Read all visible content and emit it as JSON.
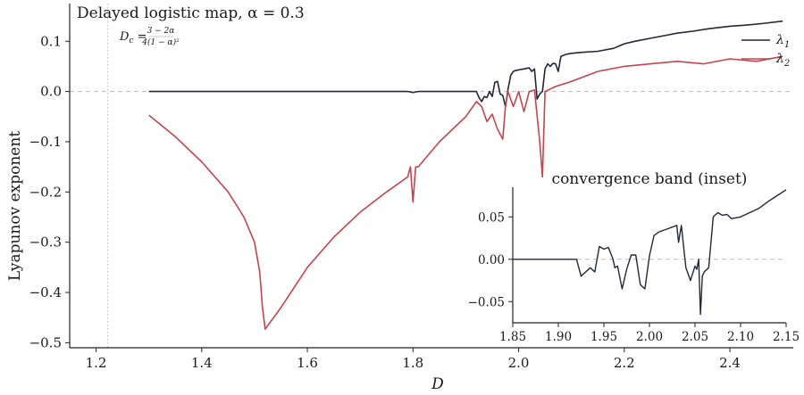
{
  "chart_data": [
    {
      "type": "line",
      "title": "Delayed logistic map, α = 0.3",
      "xlabel": "D",
      "ylabel": "Lyapunov exponent",
      "xlim": [
        1.15,
        2.52
      ],
      "ylim": [
        -0.51,
        0.175
      ],
      "xticks": [
        1.2,
        1.4,
        1.6,
        1.8,
        2.0,
        2.2,
        2.4
      ],
      "xtick_labels": [
        "1.2",
        "1.4",
        "1.6",
        "1.8",
        "2.0",
        "2.2",
        "2.4"
      ],
      "yticks": [
        0.1,
        0.0,
        -0.1,
        -0.2,
        -0.3,
        -0.4,
        -0.5
      ],
      "ytick_labels": [
        "0.1",
        "0.0",
        "−0.1",
        "−0.2",
        "−0.3",
        "−0.4",
        "−0.5"
      ],
      "grid": false,
      "legend": "top-right",
      "reference_lines": [
        {
          "orientation": "horizontal",
          "value": 0.0,
          "style": "dashed",
          "color": "#bbbbbb"
        },
        {
          "orientation": "vertical",
          "value": 1.2222,
          "style": "dotted",
          "color": "#bbbbbb"
        }
      ],
      "annotation": {
        "text": "D_c = (3 − 2α) / (4(1 − α)²)",
        "x": 1.225,
        "y": 0.14
      },
      "series": [
        {
          "name": "λ1",
          "color": "#232838",
          "x": [
            1.3,
            1.5,
            1.7,
            1.79,
            1.8,
            1.81,
            1.9,
            1.915,
            1.92,
            1.925,
            1.93,
            1.935,
            1.94,
            1.945,
            1.95,
            1.955,
            1.96,
            1.965,
            1.97,
            1.975,
            1.98,
            1.985,
            1.99,
            1.995,
            2.0,
            2.005,
            2.01,
            2.015,
            2.02,
            2.025,
            2.03,
            2.035,
            2.04,
            2.045,
            2.05,
            2.055,
            2.06,
            2.065,
            2.07,
            2.075,
            2.08,
            2.09,
            2.1,
            2.12,
            2.15,
            2.18,
            2.2,
            2.22,
            2.25,
            2.28,
            2.3,
            2.33,
            2.36,
            2.4,
            2.43,
            2.46,
            2.5
          ],
          "y": [
            0.0,
            0.0,
            0.0,
            0.0,
            -0.002,
            0.0,
            0.0,
            0.0,
            0.0,
            -0.012,
            -0.02,
            -0.01,
            -0.012,
            0.0,
            -0.01,
            0.018,
            0.02,
            -0.005,
            -0.008,
            -0.03,
            0.005,
            0.032,
            0.04,
            0.042,
            0.043,
            0.044,
            0.045,
            0.046,
            0.047,
            0.04,
            0.045,
            -0.015,
            -0.005,
            0.0,
            0.045,
            0.055,
            0.05,
            0.056,
            0.055,
            0.04,
            0.07,
            0.074,
            0.076,
            0.078,
            0.08,
            0.086,
            0.095,
            0.1,
            0.106,
            0.112,
            0.116,
            0.12,
            0.125,
            0.13,
            0.132,
            0.135,
            0.14
          ]
        },
        {
          "name": "λ2",
          "color": "#c8434e",
          "x": [
            1.3,
            1.35,
            1.4,
            1.45,
            1.48,
            1.5,
            1.51,
            1.515,
            1.52,
            1.55,
            1.6,
            1.65,
            1.7,
            1.75,
            1.79,
            1.795,
            1.8,
            1.805,
            1.81,
            1.85,
            1.9,
            1.92,
            1.93,
            1.94,
            1.95,
            1.96,
            1.97,
            1.975,
            1.98,
            1.99,
            2.0,
            2.01,
            2.02,
            2.03,
            2.04,
            2.045,
            2.05,
            2.06,
            2.07,
            2.1,
            2.15,
            2.2,
            2.25,
            2.3,
            2.35,
            2.4,
            2.45,
            2.5
          ],
          "y": [
            -0.047,
            -0.09,
            -0.14,
            -0.2,
            -0.25,
            -0.3,
            -0.36,
            -0.43,
            -0.473,
            -0.43,
            -0.35,
            -0.29,
            -0.24,
            -0.2,
            -0.17,
            -0.15,
            -0.22,
            -0.15,
            -0.15,
            -0.1,
            -0.05,
            -0.02,
            -0.03,
            -0.06,
            -0.045,
            -0.075,
            -0.095,
            -0.03,
            0.0,
            -0.03,
            0.0,
            -0.04,
            0.0,
            0.003,
            -0.1,
            -0.17,
            0.0,
            0.005,
            0.01,
            0.02,
            0.04,
            0.05,
            0.055,
            0.06,
            0.055,
            0.065,
            0.06,
            0.07
          ]
        }
      ]
    },
    {
      "type": "line",
      "title": "convergence band (inset)",
      "xlim": [
        1.85,
        2.15
      ],
      "ylim": [
        -0.075,
        0.085
      ],
      "xticks": [
        1.85,
        1.9,
        1.95,
        2.0,
        2.05,
        2.1,
        2.15
      ],
      "xtick_labels": [
        "1.85",
        "1.90",
        "1.95",
        "2.00",
        "2.05",
        "2.10",
        "2.15"
      ],
      "yticks": [
        0.05,
        0.0,
        -0.05
      ],
      "ytick_labels": [
        "0.05",
        "0.00",
        "−0.05"
      ],
      "grid": false,
      "reference_lines": [
        {
          "orientation": "horizontal",
          "value": 0.0,
          "style": "dashed",
          "color": "#bbbbbb"
        }
      ],
      "series": [
        {
          "name": "λ1",
          "color": "#232838",
          "x": [
            1.85,
            1.9,
            1.915,
            1.92,
            1.925,
            1.93,
            1.935,
            1.94,
            1.945,
            1.95,
            1.955,
            1.96,
            1.962,
            1.965,
            1.97,
            1.975,
            1.98,
            1.985,
            1.99,
            1.995,
            2.0,
            2.005,
            2.01,
            2.015,
            2.02,
            2.025,
            2.03,
            2.032,
            2.035,
            2.04,
            2.045,
            2.05,
            2.052,
            2.054,
            2.056,
            2.058,
            2.06,
            2.065,
            2.07,
            2.075,
            2.08,
            2.085,
            2.09,
            2.1,
            2.11,
            2.12,
            2.13,
            2.14,
            2.15
          ],
          "y": [
            0.0,
            0.0,
            0.0,
            0.0,
            -0.02,
            -0.015,
            -0.01,
            -0.015,
            0.015,
            0.012,
            0.014,
            0.0,
            -0.01,
            -0.008,
            -0.035,
            -0.012,
            0.005,
            0.005,
            -0.03,
            -0.035,
            0.004,
            0.028,
            0.032,
            0.034,
            0.036,
            0.038,
            0.04,
            0.02,
            0.04,
            -0.01,
            -0.025,
            -0.008,
            -0.012,
            0.0,
            -0.065,
            -0.02,
            -0.015,
            -0.01,
            0.05,
            0.055,
            0.052,
            0.053,
            0.048,
            0.05,
            0.055,
            0.06,
            0.068,
            0.075,
            0.082
          ]
        }
      ]
    }
  ]
}
